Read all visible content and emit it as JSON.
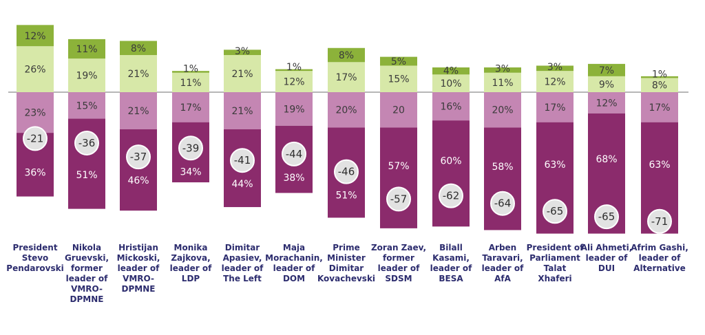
{
  "chart_data": {
    "type": "bar",
    "stacked": "diverging",
    "categories": [
      [
        "President",
        "Stevo",
        "Pendarovski"
      ],
      [
        "Nikola",
        "Gruevski,",
        "former",
        "leader of",
        "VMRO-",
        "DPMNE"
      ],
      [
        "Hristijan",
        "Mickoski,",
        "leader of",
        "VMRO-",
        "DPMNE"
      ],
      [
        "Monika",
        "Zajkova,",
        "leader of",
        "LDP"
      ],
      [
        "Dimitar",
        "Apasiev,",
        "leader of",
        "The Left"
      ],
      [
        "Maja",
        "Morachanin,",
        "leader of",
        "DOM"
      ],
      [
        "Prime",
        "Minister",
        "Dimitar",
        "Kovachevski"
      ],
      [
        "Zoran Zaev,",
        "former",
        "leader of",
        "SDSM"
      ],
      [
        "Bilall",
        "Kasami,",
        "leader of",
        "BESA"
      ],
      [
        "Arben",
        "Taravari,",
        "leader of",
        "AfA"
      ],
      [
        "President of",
        "Parliament",
        "Talat",
        "Xhaferi"
      ],
      [
        "Ali Ahmeti,",
        "leader of",
        "DUI"
      ],
      [
        "Afrim Gashi,",
        "leader of",
        "Alternative"
      ]
    ],
    "series": [
      {
        "direction": "positive",
        "color": "#8cb23a",
        "values": [
          12,
          11,
          8,
          1,
          3,
          1,
          8,
          5,
          4,
          3,
          3,
          7,
          1
        ],
        "labels": [
          "12%",
          "11%",
          "8%",
          "1%",
          "3%",
          "1%",
          "8%",
          "5%",
          "4%",
          "3%",
          "3%",
          "7%",
          "1%"
        ]
      },
      {
        "direction": "positive",
        "color": "#d7e8a8",
        "values": [
          26,
          19,
          21,
          11,
          21,
          12,
          17,
          15,
          10,
          11,
          12,
          9,
          8
        ],
        "labels": [
          "26%",
          "19%",
          "21%",
          "11%",
          "21%",
          "12%",
          "17%",
          "15%",
          "10%",
          "11%",
          "12%",
          "9%",
          "8%"
        ]
      },
      {
        "direction": "negative",
        "color": "#c486b3",
        "values": [
          23,
          15,
          21,
          17,
          21,
          19,
          20,
          20,
          16,
          20,
          17,
          12,
          17
        ],
        "labels": [
          "23%",
          "15%",
          "21%",
          "17%",
          "21%",
          "19%",
          "20%",
          "20",
          "16%",
          "20%",
          "17%",
          "12%",
          "17%"
        ]
      },
      {
        "direction": "negative",
        "color": "#8b2b6c",
        "values": [
          36,
          51,
          46,
          34,
          44,
          38,
          51,
          57,
          60,
          58,
          63,
          68,
          63
        ],
        "labels": [
          "36%",
          "51%",
          "46%",
          "34%",
          "44%",
          "38%",
          "51%",
          "57%",
          "60%",
          "58%",
          "63%",
          "68%",
          "63%"
        ]
      }
    ],
    "net_scores": [
      "-21",
      "-36",
      "-37",
      "-39",
      "-41",
      "-44",
      "-46",
      "-57",
      "-62",
      "-64",
      "-65",
      "-65",
      "-71"
    ],
    "net_values": [
      -21,
      -36,
      -37,
      -39,
      -41,
      -44,
      -46,
      -57,
      -62,
      -64,
      -65,
      -65,
      -71
    ],
    "legend": "none",
    "grid": false
  }
}
